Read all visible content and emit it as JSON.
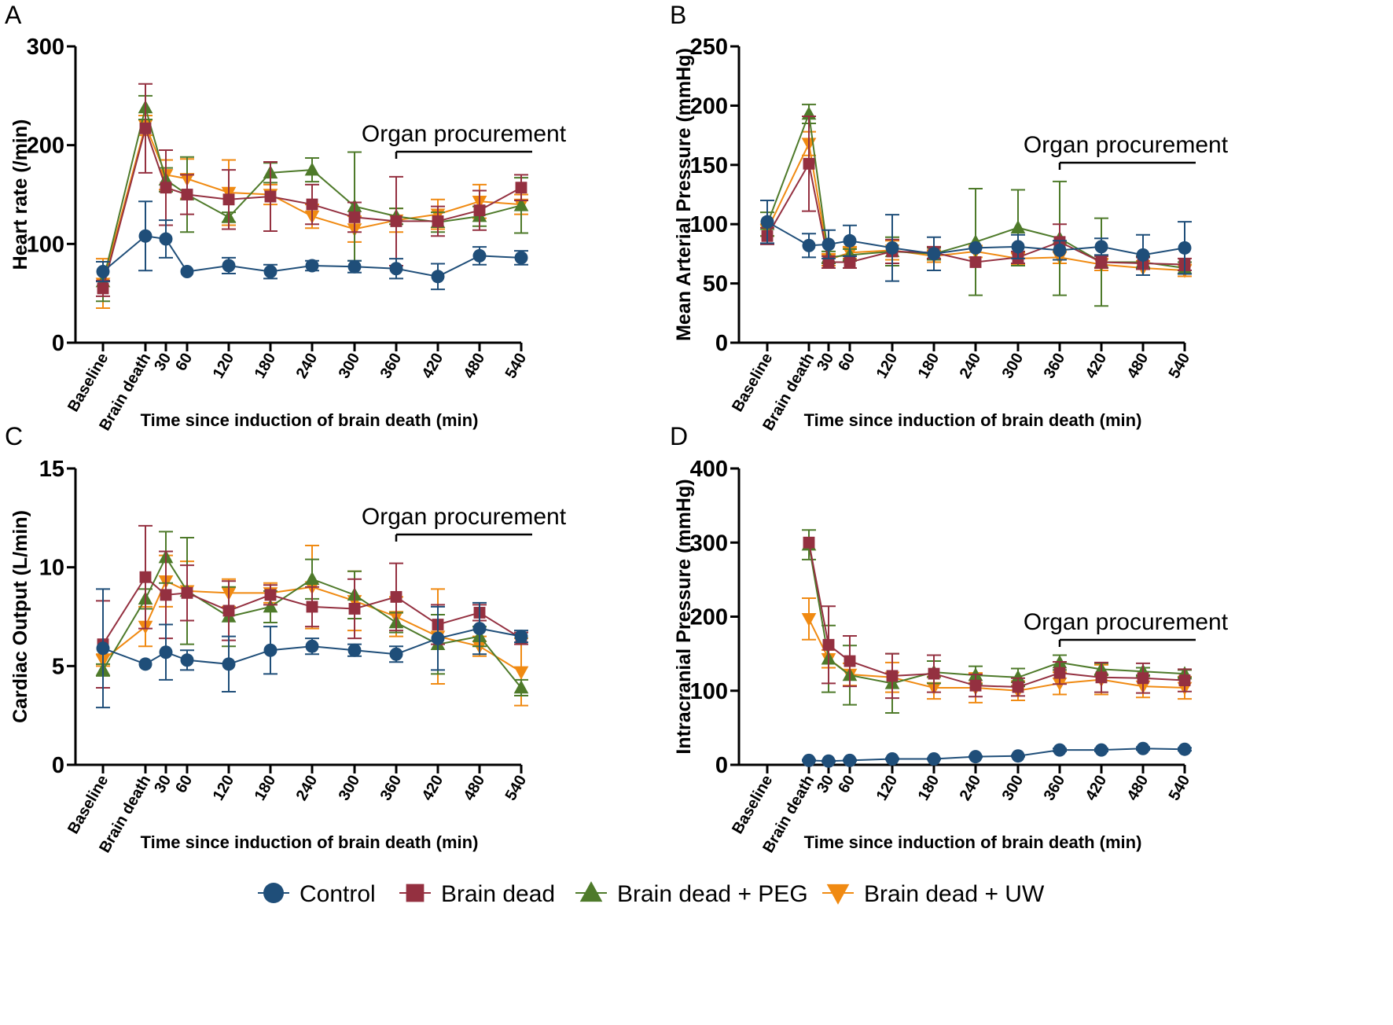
{
  "legend": {
    "items": [
      {
        "label": "Control",
        "color": "#1f4e79",
        "marker": "circle"
      },
      {
        "label": "Brain dead",
        "color": "#943040",
        "marker": "square"
      },
      {
        "label": "Brain dead + PEG",
        "color": "#4e7a2a",
        "marker": "triangle-up"
      },
      {
        "label": "Brain dead + UW",
        "color": "#f08a12",
        "marker": "triangle-down"
      }
    ]
  },
  "chart_data": [
    {
      "panel": "A",
      "type": "line",
      "ylabel": "Heart rate (/min)",
      "xlabel": "Time since induction of brain death (min)",
      "ylim": [
        0,
        300
      ],
      "yticks": [
        "0",
        "100",
        "200",
        "300"
      ],
      "annotation": "Organ procurement",
      "procurement_start": "360",
      "categories": [
        "Baseline",
        "Brain death",
        "30",
        "60",
        "120",
        "180",
        "240",
        "300",
        "360",
        "420",
        "480",
        "540"
      ],
      "series": [
        {
          "name": "Control",
          "values": [
            72,
            108,
            105,
            72,
            78,
            72,
            78,
            77,
            75,
            67,
            88,
            86
          ],
          "errors": [
            10,
            35,
            19,
            0,
            8,
            7,
            5,
            6,
            10,
            13,
            9,
            7
          ]
        },
        {
          "name": "Brain dead",
          "values": [
            55,
            217,
            157,
            150,
            145,
            148,
            140,
            127,
            123,
            123,
            134,
            157
          ],
          "errors": [
            8,
            45,
            38,
            20,
            30,
            35,
            20,
            15,
            45,
            15,
            20,
            13
          ]
        },
        {
          "name": "Brain dead + PEG",
          "values": [
            62,
            238,
            165,
            150,
            127,
            172,
            175,
            138,
            128,
            122,
            128,
            139
          ],
          "errors": [
            20,
            12,
            12,
            38,
            5,
            10,
            12,
            55,
            8,
            10,
            10,
            28
          ]
        },
        {
          "name": "Brain dead + UW",
          "values": [
            60,
            220,
            170,
            166,
            152,
            150,
            128,
            115,
            124,
            130,
            143,
            140
          ],
          "errors": [
            25,
            10,
            15,
            20,
            33,
            10,
            12,
            13,
            12,
            15,
            17,
            10
          ]
        }
      ]
    },
    {
      "panel": "B",
      "type": "line",
      "ylabel": "Mean Arterial Pressure (mmHg)",
      "xlabel": "Time since induction of brain death (min)",
      "ylim": [
        0,
        250
      ],
      "yticks": [
        "0",
        "50",
        "100",
        "150",
        "200",
        "250"
      ],
      "annotation": "Organ procurement",
      "procurement_start": "360",
      "categories": [
        "Baseline",
        "Brain death",
        "30",
        "60",
        "120",
        "180",
        "240",
        "300",
        "360",
        "420",
        "480",
        "540"
      ],
      "series": [
        {
          "name": "Control",
          "values": [
            102,
            82,
            83,
            86,
            80,
            75,
            80,
            81,
            78,
            81,
            74,
            80
          ],
          "errors": [
            18,
            10,
            12,
            13,
            28,
            14,
            0,
            10,
            8,
            7,
            17,
            22
          ]
        },
        {
          "name": "Brain dead",
          "values": [
            90,
            151,
            68,
            68,
            77,
            76,
            68,
            72,
            85,
            68,
            67,
            66
          ],
          "errors": [
            7,
            40,
            5,
            5,
            10,
            5,
            0,
            5,
            15,
            5,
            5,
            5
          ]
        },
        {
          "name": "Brain dead + PEG",
          "values": [
            100,
            193,
            72,
            74,
            77,
            75,
            85,
            97,
            88,
            68,
            68,
            63
          ],
          "errors": [
            10,
            8,
            5,
            5,
            12,
            5,
            45,
            32,
            48,
            37,
            5,
            5
          ]
        },
        {
          "name": "Brain dead + UW",
          "values": [
            95,
            168,
            70,
            76,
            78,
            73,
            77,
            71,
            72,
            66,
            63,
            61
          ],
          "errors": [
            5,
            10,
            5,
            5,
            8,
            5,
            5,
            5,
            5,
            5,
            6,
            5
          ]
        }
      ]
    },
    {
      "panel": "C",
      "type": "line",
      "ylabel": "Cardiac Output (L/min)",
      "xlabel": "Time since induction of brain death (min)",
      "ylim": [
        0,
        15
      ],
      "yticks": [
        "0",
        "5",
        "10",
        "15"
      ],
      "annotation": "Organ procurement",
      "procurement_start": "360",
      "categories": [
        "Baseline",
        "Brain death",
        "30",
        "60",
        "120",
        "180",
        "240",
        "300",
        "360",
        "420",
        "480",
        "540"
      ],
      "series": [
        {
          "name": "Control",
          "values": [
            5.9,
            5.1,
            5.7,
            5.3,
            5.1,
            5.8,
            6.0,
            5.8,
            5.6,
            6.4,
            6.9,
            6.5
          ],
          "errors": [
            3.0,
            0.0,
            1.4,
            0.5,
            1.4,
            1.2,
            0.4,
            0.3,
            0.4,
            1.6,
            1.3,
            0.3
          ]
        },
        {
          "name": "Brain dead",
          "values": [
            6.1,
            9.5,
            8.6,
            8.7,
            7.8,
            8.6,
            8.0,
            7.9,
            8.5,
            7.1,
            7.7,
            6.4
          ],
          "errors": [
            2.2,
            2.6,
            2.2,
            1.4,
            1.5,
            0.5,
            1.0,
            1.5,
            1.7,
            1.0,
            0.4,
            0.3
          ]
        },
        {
          "name": "Brain dead + PEG",
          "values": [
            4.8,
            8.4,
            10.5,
            8.8,
            7.5,
            8.0,
            9.4,
            8.6,
            7.2,
            6.1,
            6.5,
            3.9
          ],
          "errors": [
            0.3,
            0.5,
            1.3,
            2.7,
            1.5,
            0.8,
            1.0,
            1.2,
            0.5,
            1.5,
            0.5,
            0.4
          ]
        },
        {
          "name": "Brain dead + UW",
          "values": [
            5.3,
            7.0,
            9.3,
            8.8,
            8.7,
            8.7,
            9.0,
            8.3,
            7.5,
            6.5,
            6.0,
            4.7
          ],
          "errors": [
            0.3,
            1.0,
            1.3,
            1.5,
            0.7,
            0.5,
            2.1,
            1.5,
            1.0,
            2.4,
            0.5,
            1.7
          ]
        }
      ]
    },
    {
      "panel": "D",
      "type": "line",
      "ylabel": "Intracranial Pressure (mmHg)",
      "xlabel": "Time since induction of brain death (min)",
      "ylim": [
        0,
        400
      ],
      "yticks": [
        "0",
        "100",
        "200",
        "300",
        "400"
      ],
      "annotation": "Organ procurement",
      "procurement_start": "360",
      "categories": [
        "Baseline",
        "Brain death",
        "30",
        "60",
        "120",
        "180",
        "240",
        "300",
        "360",
        "420",
        "480",
        "540"
      ],
      "series": [
        {
          "name": "Control",
          "values": [
            null,
            6,
            5,
            6,
            8,
            8,
            11,
            12,
            20,
            20,
            22,
            21
          ],
          "errors": [
            0,
            1,
            1,
            1,
            1,
            1,
            1,
            1,
            2,
            2,
            2,
            2
          ]
        },
        {
          "name": "Brain dead",
          "values": [
            null,
            300,
            162,
            140,
            120,
            123,
            107,
            105,
            124,
            118,
            117,
            114
          ],
          "errors": [
            0,
            0,
            52,
            34,
            30,
            25,
            15,
            12,
            15,
            20,
            20,
            15
          ]
        },
        {
          "name": "Brain dead + PEG",
          "values": [
            null,
            297,
            143,
            121,
            110,
            125,
            121,
            118,
            138,
            129,
            126,
            123
          ],
          "errors": [
            0,
            20,
            45,
            40,
            40,
            15,
            12,
            12,
            10,
            8,
            5,
            5
          ]
        },
        {
          "name": "Brain dead + UW",
          "values": [
            null,
            197,
            143,
            122,
            118,
            104,
            104,
            100,
            110,
            115,
            106,
            104
          ],
          "errors": [
            0,
            28,
            12,
            15,
            20,
            15,
            20,
            13,
            15,
            20,
            15,
            15
          ]
        }
      ]
    }
  ]
}
